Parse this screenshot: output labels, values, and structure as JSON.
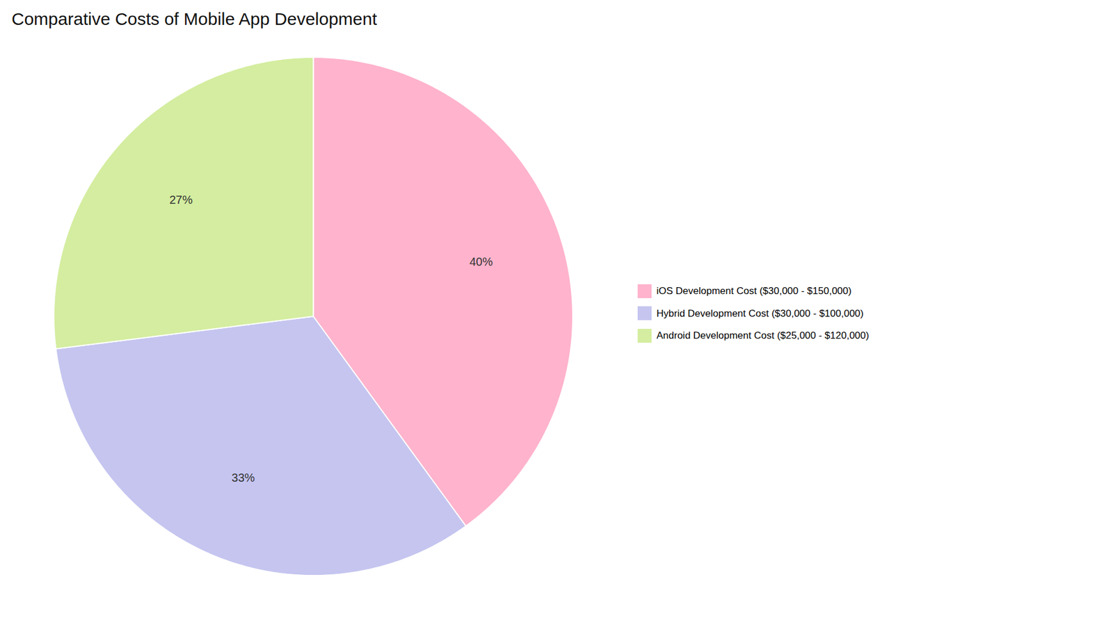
{
  "chart_data": {
    "type": "pie",
    "title": "Comparative Costs of Mobile App Development",
    "categories": [
      "iOS Development Cost ($30,000 - $150,000)",
      "Hybrid Development Cost ($30,000 - $100,000)",
      "Android Development Cost ($25,000 - $120,000)"
    ],
    "values": [
      40,
      33,
      27
    ],
    "value_labels": [
      "40%",
      "33%",
      "27%"
    ],
    "colors": [
      "#FFB3CC",
      "#C5C5F0",
      "#D4EDA0"
    ],
    "data_labels": true,
    "legend": "right"
  }
}
